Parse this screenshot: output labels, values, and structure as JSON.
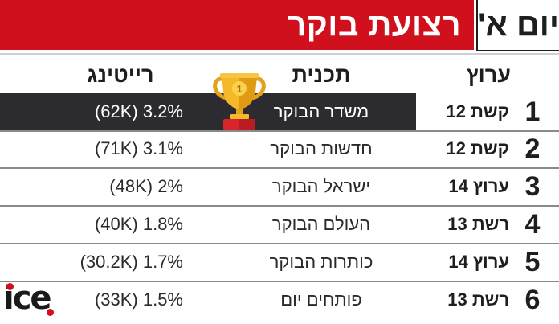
{
  "header": {
    "title": "רצועת בוקר",
    "day": "יום א'"
  },
  "columns": {
    "channel": "ערוץ",
    "program": "תכנית",
    "rating": "רייטינג"
  },
  "rows": [
    {
      "rank": "1",
      "channel": "קשת 12",
      "program": "משדר הבוקר",
      "rating": "(62K) 3.2%"
    },
    {
      "rank": "2",
      "channel": "קשת 12",
      "program": "חדשות הבוקר",
      "rating": "(71K) 3.1%"
    },
    {
      "rank": "3",
      "channel": "ערוץ 14",
      "program": "ישראל הבוקר",
      "rating": "(48K) 2%"
    },
    {
      "rank": "4",
      "channel": "רשת 13",
      "program": "העולם הבוקר",
      "rating": "(40K) 1.8%"
    },
    {
      "rank": "5",
      "channel": "ערוץ 14",
      "program": "כותרות הבוקר",
      "rating": "(30.2K) 1.7%"
    },
    {
      "rank": "6",
      "channel": "רשת 13",
      "program": "פותחים יום",
      "rating": "(33K) 1.5%"
    }
  ],
  "trophy": {
    "icon": "trophy-icon",
    "number": "1"
  },
  "logo": {
    "text": "ice"
  },
  "colors": {
    "accent": "#d0101d",
    "highlight_row": "#2c2c30",
    "text": "#1e1e1e"
  }
}
